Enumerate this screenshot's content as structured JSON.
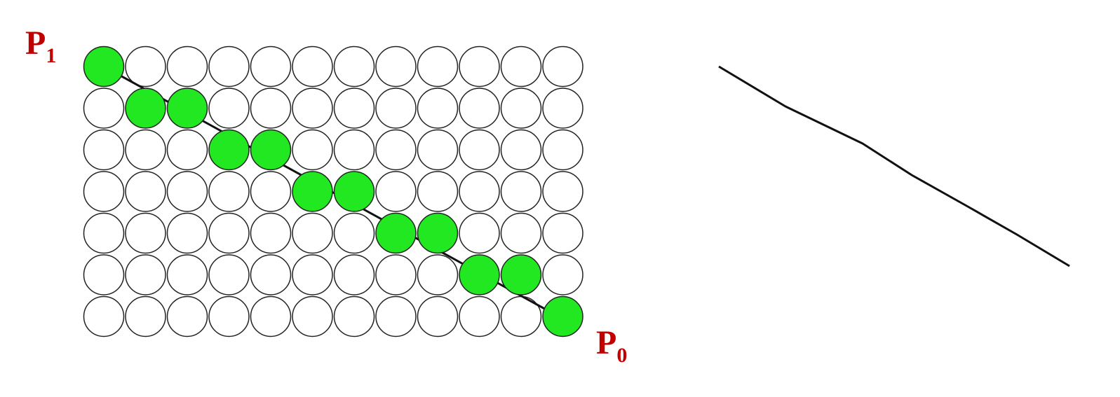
{
  "labels": {
    "start": {
      "base": "P",
      "sub": "1"
    },
    "end": {
      "base": "P",
      "sub": "0"
    }
  },
  "grid": {
    "columns": 12,
    "rows": 7
  },
  "rasterized_pixels": [
    [
      0,
      0
    ],
    [
      1,
      1
    ],
    [
      2,
      1
    ],
    [
      3,
      2
    ],
    [
      4,
      2
    ],
    [
      5,
      3
    ],
    [
      6,
      3
    ],
    [
      7,
      4
    ],
    [
      8,
      4
    ],
    [
      9,
      5
    ],
    [
      10,
      5
    ],
    [
      11,
      6
    ]
  ],
  "colors": {
    "pixel_on": "#22e822",
    "pixel_off": "#ffffff",
    "pixel_outline": "#222222",
    "line": "#111111",
    "label": "#c00000"
  }
}
